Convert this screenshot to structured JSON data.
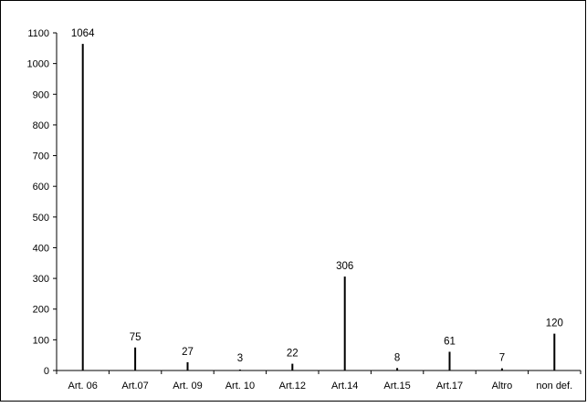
{
  "chart_data": {
    "type": "bar",
    "title": "",
    "xlabel": "",
    "ylabel": "",
    "categories": [
      "Art. 06",
      "Art.07",
      "Art. 09",
      "Art. 10",
      "Art.12",
      "Art.14",
      "Art.15",
      "Art.17",
      "Altro",
      "non def."
    ],
    "values": [
      1064,
      75,
      27,
      3,
      22,
      306,
      8,
      61,
      7,
      120
    ],
    "data_labels": [
      "1064",
      "75",
      "27",
      "3",
      "22",
      "306",
      "8",
      "61",
      "7",
      "120"
    ],
    "ylim": [
      0,
      1100
    ],
    "yticks": [
      0,
      100,
      200,
      300,
      400,
      500,
      600,
      700,
      800,
      900,
      1000,
      1100
    ],
    "grid": false,
    "legend": "none",
    "colors": {
      "bar": "#000000",
      "axis": "#000000",
      "frame": "#000000",
      "background": "#ffffff"
    }
  }
}
